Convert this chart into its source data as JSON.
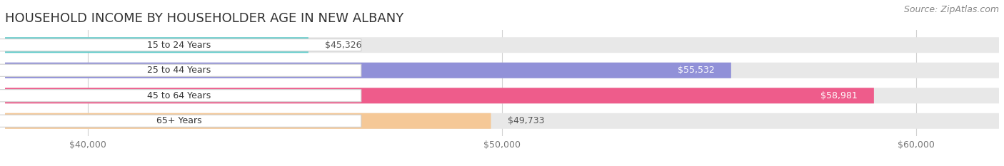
{
  "title": "HOUSEHOLD INCOME BY HOUSEHOLDER AGE IN NEW ALBANY",
  "source": "Source: ZipAtlas.com",
  "categories": [
    "15 to 24 Years",
    "25 to 44 Years",
    "45 to 64 Years",
    "65+ Years"
  ],
  "values": [
    45326,
    55532,
    58981,
    49733
  ],
  "bar_colors": [
    "#62CDCC",
    "#9191D8",
    "#EE5C8B",
    "#F5C897"
  ],
  "background_color": "#ffffff",
  "bar_bg_color": "#e8e8e8",
  "xlim_min": 38000,
  "xlim_max": 62000,
  "xticks": [
    40000,
    50000,
    60000
  ],
  "xtick_labels": [
    "$40,000",
    "$50,000",
    "$60,000"
  ],
  "title_fontsize": 13,
  "source_fontsize": 9,
  "label_fontsize": 9,
  "value_fontsize": 9,
  "bar_height": 0.62,
  "bar_gap": 0.38,
  "value_inside_color": "#ffffff",
  "value_outside_color": "#555555",
  "inside_threshold": 52000
}
